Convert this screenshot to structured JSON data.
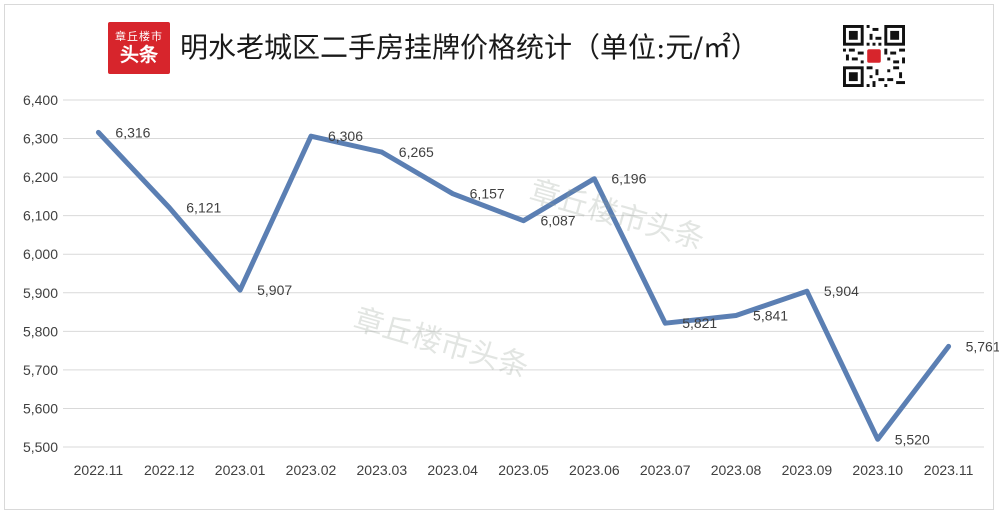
{
  "header": {
    "logo_line1": "章丘楼市",
    "logo_line2": "头条",
    "title": "明水老城区二手房挂牌价格统计（单位:元/㎡）"
  },
  "watermark": "章丘楼市头条",
  "colors": {
    "line": "#5b7fb3",
    "grid": "#d9d9d9",
    "text": "#404040",
    "brand": "#d7252c"
  },
  "chart_data": {
    "type": "line",
    "title": "明水老城区二手房挂牌价格统计（单位:元/㎡）",
    "categories": [
      "2022.11",
      "2022.12",
      "2023.01",
      "2023.02",
      "2023.03",
      "2023.04",
      "2023.05",
      "2023.06",
      "2023.07",
      "2023.08",
      "2023.09",
      "2023.10",
      "2023.11"
    ],
    "series": [
      {
        "values": [
          6316,
          6121,
          5907,
          6306,
          6265,
          6157,
          6087,
          6196,
          5821,
          5841,
          5904,
          5520,
          5761
        ]
      }
    ],
    "data_labels": [
      "6,316",
      "6,121",
      "5,907",
      "6,306",
      "6,265",
      "6,157",
      "6,087",
      "6,196",
      "5,821",
      "5,841",
      "5,904",
      "5,520",
      "5,761"
    ],
    "yticks": [
      "5,500",
      "5,600",
      "5,700",
      "5,800",
      "5,900",
      "6,000",
      "6,100",
      "6,200",
      "6,300",
      "6,400"
    ],
    "ylim": [
      5500,
      6400
    ],
    "grid": true,
    "legend": "none"
  }
}
